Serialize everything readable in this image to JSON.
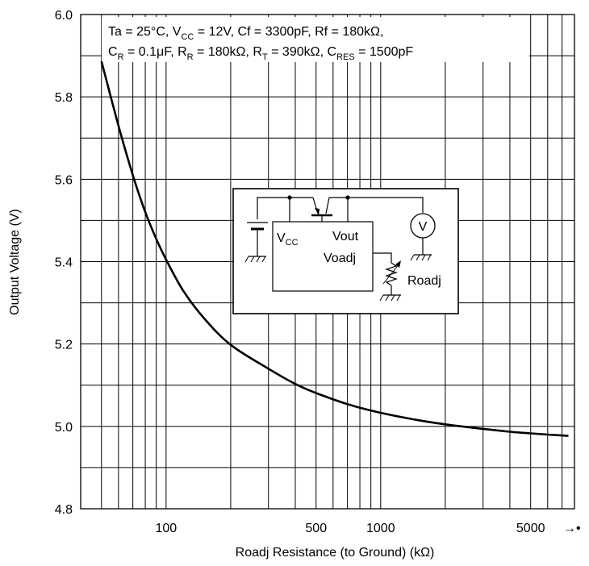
{
  "chart_data": {
    "type": "line",
    "xlabel": "Roadj Resistance (to Ground) (kΩ)",
    "ylabel": "Output Voltage (V)",
    "xscale": "log",
    "xlim": [
      40,
      8000
    ],
    "ylim": [
      4.8,
      6.0
    ],
    "x_ticks": [
      {
        "value": 100,
        "label": "100"
      },
      {
        "value": 500,
        "label": "500"
      },
      {
        "value": 1000,
        "label": "1000"
      },
      {
        "value": 5000,
        "label": "5000"
      }
    ],
    "x_end_label": "→•",
    "y_ticks": [
      {
        "value": 4.8,
        "label": "4.8"
      },
      {
        "value": 5.0,
        "label": "5.0"
      },
      {
        "value": 5.2,
        "label": "5.2"
      },
      {
        "value": 5.4,
        "label": "5.4"
      },
      {
        "value": 5.6,
        "label": "5.6"
      },
      {
        "value": 5.8,
        "label": "5.8"
      },
      {
        "value": 6.0,
        "label": "6.0"
      }
    ],
    "grid": true,
    "series": [
      {
        "x": [
          50,
          60,
          70,
          80,
          90,
          100,
          120,
          150,
          200,
          300,
          400,
          500,
          700,
          1000,
          1500,
          2000,
          3000,
          4000,
          5000,
          6000,
          7000,
          7500
        ],
        "y": [
          5.886,
          5.73,
          5.61,
          5.52,
          5.455,
          5.405,
          5.33,
          5.263,
          5.198,
          5.14,
          5.103,
          5.081,
          5.054,
          5.033,
          5.015,
          5.005,
          4.994,
          4.987,
          4.983,
          4.98,
          4.978,
          4.977
        ]
      }
    ],
    "conditions": {
      "line1": [
        {
          "t": "Ta = 25°C, V"
        },
        {
          "t": "CC",
          "sub": true
        },
        {
          "t": " = 12V, Cf = 3300pF, Rf = 180kΩ,"
        }
      ],
      "line2": [
        {
          "t": "C"
        },
        {
          "t": "R",
          "sub": true
        },
        {
          "t": " = 0.1μF, R"
        },
        {
          "t": "R",
          "sub": true
        },
        {
          "t": " = 180kΩ, R"
        },
        {
          "t": "T",
          "sub": true
        },
        {
          "t": " = 390kΩ, C"
        },
        {
          "t": "RES",
          "sub": true
        },
        {
          "t": " = 1500pF"
        }
      ]
    },
    "inset_circuit": {
      "vcc_main": "V",
      "vcc_sub": "CC",
      "vout": "Vout",
      "voadj": "Voadj",
      "roadj": "Roadj",
      "meter": "V"
    }
  }
}
